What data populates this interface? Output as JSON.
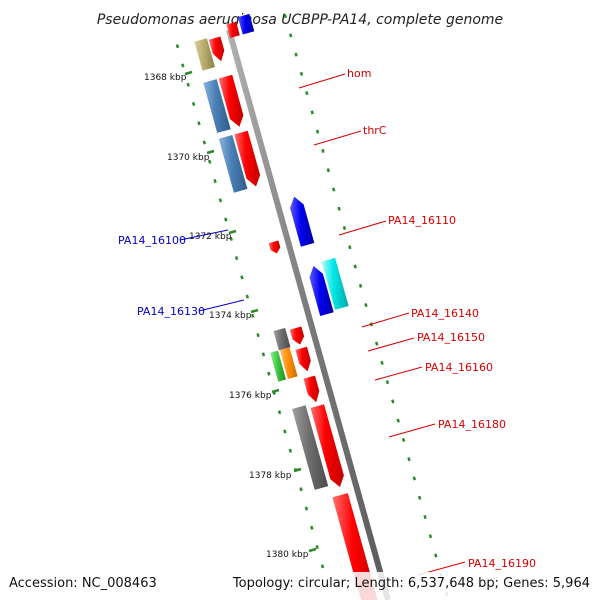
{
  "title": "Pseudomonas aeruginosa UCBPP-PA14, complete genome",
  "footer": {
    "accession": "Accession: NC_008463",
    "summary": "Topology: circular; Length: 6,537,648 bp; Genes: 5,964"
  },
  "ticks": [
    {
      "label": "1368 kbp"
    },
    {
      "label": "1370 kbp"
    },
    {
      "label": "1372 kbp"
    },
    {
      "label": "1374 kbp"
    },
    {
      "label": "1376 kbp"
    },
    {
      "label": "1378 kbp"
    },
    {
      "label": "1380 kbp"
    }
  ],
  "gene_labels": [
    {
      "text": "hom",
      "color": "#d40000"
    },
    {
      "text": "thrC",
      "color": "#d40000"
    },
    {
      "text": "PA14_16110",
      "color": "#d40000"
    },
    {
      "text": "PA14_16100",
      "color": "#0000c0"
    },
    {
      "text": "PA14_16130",
      "color": "#0000c0"
    },
    {
      "text": "PA14_16140",
      "color": "#d40000"
    },
    {
      "text": "PA14_16150",
      "color": "#d40000"
    },
    {
      "text": "PA14_16160",
      "color": "#d40000"
    },
    {
      "text": "PA14_16180",
      "color": "#d40000"
    },
    {
      "text": "PA14_16190",
      "color": "#d40000"
    }
  ],
  "colors": {
    "backbone": "#808080",
    "forward_gene": "#ff0000",
    "reverse_gene": "#0000ee",
    "cds_steelblue": "#4a7fb5",
    "cds_khaki": "#b5a96a",
    "cds_cyan": "#00e5e5",
    "cds_gray": "#707070",
    "cds_orange": "#ff8c00",
    "cds_green": "#3ec43e",
    "dotted_scale": "#2a8a2a"
  }
}
